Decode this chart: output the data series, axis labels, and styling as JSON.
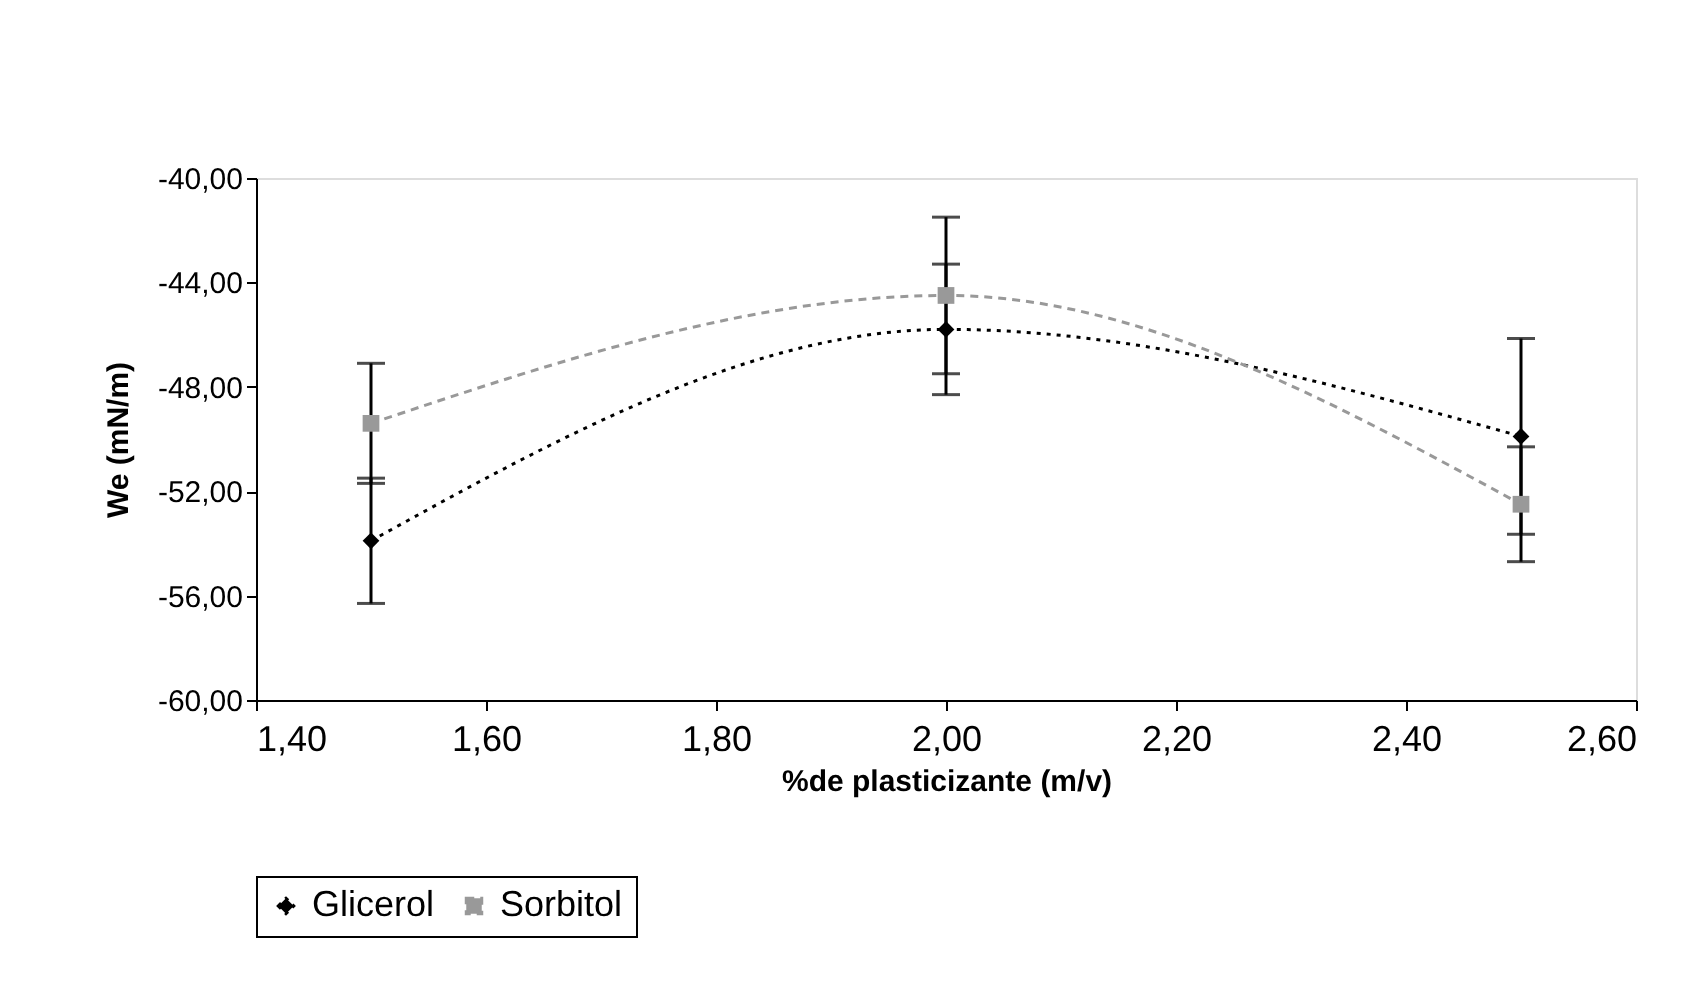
{
  "chart_data": {
    "type": "line",
    "xlabel": "%de plasticizante (m/v)",
    "ylabel": "We (mN/m)",
    "x": [
      1.5,
      2.0,
      2.5
    ],
    "series": [
      {
        "name": "Glicerol",
        "color": "#000000",
        "values": [
          -53.9,
          -45.8,
          -49.9
        ],
        "errors": [
          2.4,
          2.5,
          3.75
        ],
        "marker": "diamond",
        "line_style": "dotted"
      },
      {
        "name": "Sorbitol",
        "color": "#999999",
        "values": [
          -49.4,
          -44.5,
          -52.5
        ],
        "errors": [
          2.3,
          3.0,
          2.2
        ],
        "marker": "square",
        "line_style": "dashed"
      }
    ],
    "xlim": [
      1.4,
      2.6
    ],
    "xticks": [
      {
        "value": 1.4,
        "label": "1,40"
      },
      {
        "value": 1.6,
        "label": "1,60"
      },
      {
        "value": 1.8,
        "label": "1,80"
      },
      {
        "value": 2.0,
        "label": "2,00"
      },
      {
        "value": 2.2,
        "label": "2,20"
      },
      {
        "value": 2.4,
        "label": "2,40"
      },
      {
        "value": 2.6,
        "label": "2,60"
      }
    ],
    "ylim": [
      -60,
      -40
    ],
    "yticks": [
      {
        "value": -60,
        "label": "-60,00"
      },
      {
        "value": -56,
        "label": "-56,00"
      },
      {
        "value": -52,
        "label": "-52,00"
      },
      {
        "value": -48,
        "label": "-48,00"
      },
      {
        "value": -44,
        "label": "-44,00"
      },
      {
        "value": -40,
        "label": "-40,00"
      }
    ],
    "grid": false,
    "legend": "bottom"
  }
}
